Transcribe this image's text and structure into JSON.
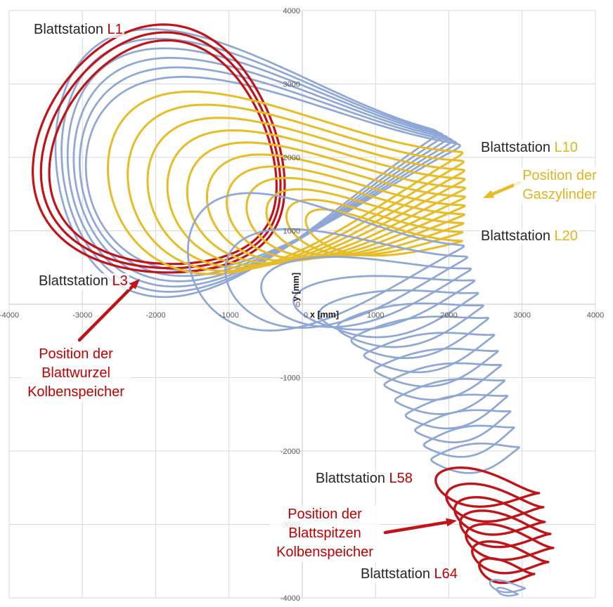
{
  "colors": {
    "curve_red": "#C01418",
    "curve_blue": "#8FA7D6",
    "curve_yellow": "#E7BC26",
    "text_red": "#C00000",
    "text_yellow": "#E2B41E",
    "text_black": "#262626",
    "grid": "#D9D9D9",
    "axis_line": "#C6C6C6",
    "tick": "#595959"
  },
  "chart_data": {
    "type": "line",
    "title": "",
    "xlabel": "x [mm]",
    "ylabel": "y [mm]",
    "xlim": [
      -4000,
      4000
    ],
    "ylim": [
      -4000,
      4000
    ],
    "xticks": [
      -4000,
      -3000,
      -2000,
      -1000,
      0,
      1000,
      2000,
      3000,
      4000
    ],
    "yticks": [
      -4000,
      -3000,
      -2000,
      -1000,
      0,
      1000,
      2000,
      3000,
      4000
    ],
    "grid": true,
    "legend": false,
    "loop_param_format": [
      "cx_mm",
      "cy_mm",
      "rx_mm",
      "ry_mm",
      "rot_deg",
      "pinch_left",
      "pinch_right",
      "bend_mm"
    ],
    "series": [
      {
        "name": "blade-root-stations-L4-L9",
        "color": "curve_blue",
        "stroke_width": 2.7,
        "loops": [
          [
            -753.5,
            2117.5,
            2613,
            1480,
            4.78,
            0,
            0.92,
            120
          ],
          [
            -679,
            2086,
            2606,
            1398,
            4.71,
            0,
            0.92,
            120
          ],
          [
            -606,
            2055,
            2597,
            1316,
            4.64,
            0,
            0.92,
            120
          ],
          [
            -534.5,
            2024,
            2586,
            1234,
            4.57,
            0,
            0.92,
            120
          ],
          [
            -465.5,
            1993.5,
            2574,
            1152,
            4.49,
            0,
            0.92,
            120
          ],
          [
            -397.5,
            1963,
            2559,
            1070,
            4.42,
            0,
            0.92,
            120
          ]
        ]
      },
      {
        "name": "blade-root-stations-L1-L3",
        "color": "curve_red",
        "stroke_width": 3.2,
        "loops": [
          [
            -1850,
            1960,
            1745,
            1655,
            -35,
            0,
            0.4,
            0
          ],
          [
            -1828,
            1944,
            1660,
            1573,
            -35,
            0,
            0.4,
            0
          ],
          [
            -1804,
            1926,
            1575,
            1492,
            -35,
            0,
            0.4,
            0
          ]
        ]
      },
      {
        "name": "gas-cylinder-stations-L10-L20",
        "color": "curve_yellow",
        "stroke_width": 3.0,
        "loops": [
          [
            -232.5,
            1910,
            2422,
            1000,
            3.55,
            0,
            0.93,
            240
          ],
          [
            -90,
            1820,
            2293,
            910,
            3.0,
            0,
            0.93,
            230
          ],
          [
            50,
            1730,
            2162,
            820,
            2.39,
            0,
            0.93,
            220
          ],
          [
            187.5,
            1640,
            2028,
            735,
            1.7,
            0,
            0.93,
            210
          ],
          [
            325,
            1550,
            1895,
            655,
            0.91,
            0,
            0.93,
            200
          ],
          [
            460,
            1460,
            1760,
            575,
            0,
            0,
            0.93,
            190
          ],
          [
            592.5,
            1370,
            1623,
            495,
            -1.06,
            0,
            0.93,
            180
          ],
          [
            725,
            1280,
            1486,
            420,
            -2.31,
            0,
            0.93,
            170
          ],
          [
            855,
            1190,
            1346,
            345,
            -3.83,
            0,
            0.93,
            160
          ],
          [
            985,
            1100,
            1206,
            275,
            -5.69,
            0,
            0.93,
            150
          ],
          [
            1115,
            1010,
            1076,
            210,
            -8.01,
            0,
            0.93,
            140
          ]
        ]
      },
      {
        "name": "mid-stations-L21-L57",
        "color": "curve_blue",
        "stroke_width": 2.7,
        "loops": [
          [
            322.5,
            745,
            1883,
            750,
            1.37,
            0,
            0.93,
            190
          ],
          [
            602,
            535,
            1653,
            570,
            3.64,
            0.2,
            0.93,
            170
          ],
          [
            871,
            345,
            1437,
            430,
            5.39,
            0.4,
            0.93,
            150
          ],
          [
            1115,
            175,
            1243,
            340,
            6.7,
            0.55,
            0.93,
            130
          ],
          [
            1315,
            5,
            1094,
            300,
            7.61,
            0.65,
            0.94,
            115
          ],
          [
            1475,
            -170,
            1006,
            280,
            8.57,
            0.75,
            0.94,
            105
          ],
          [
            1605,
            -345,
            947,
            265,
            9.42,
            0.8,
            0.94,
            100
          ],
          [
            1732,
            -560,
            899,
            255,
            8.96,
            0.85,
            0.95,
            95
          ],
          [
            1829,
            -770,
            851,
            245,
            8.79,
            0.85,
            0.95,
            90
          ],
          [
            1918,
            -965,
            808,
            235,
            9.62,
            0.85,
            0.95,
            85
          ],
          [
            2013,
            -1175,
            759,
            225,
            10.24,
            0.85,
            0.95,
            80
          ],
          [
            2105,
            -1385,
            708,
            215,
            11.0,
            0.85,
            0.95,
            75
          ],
          [
            2190,
            -1590,
            663,
            205,
            11.31,
            0.85,
            0.95,
            70
          ],
          [
            2275,
            -1800,
            627,
            200,
            11.04,
            0.85,
            0.95,
            65
          ],
          [
            2360,
            -2035,
            606,
            195,
            8.06,
            0.85,
            0.95,
            60
          ]
        ]
      },
      {
        "name": "blade-tip-stations-L58-L64",
        "color": "curve_red",
        "stroke_width": 3.4,
        "loops": [
          [
            2526,
            -2478,
            711,
            230,
            -7.72,
            0.55,
            1,
            50
          ],
          [
            2627,
            -2684,
            666,
            225,
            -6.98,
            0.55,
            1,
            50
          ],
          [
            2694,
            -2870,
            621,
            220,
            -8.85,
            0.55,
            1,
            50
          ],
          [
            2771,
            -3043,
            620,
            215,
            -7.97,
            0.55,
            1,
            50
          ],
          [
            2829,
            -3224,
            602,
            210,
            -9.12,
            0.55,
            1,
            50
          ],
          [
            2838,
            -3430,
            524,
            185,
            -8.94,
            0.55,
            1,
            50
          ],
          [
            2790,
            -3608,
            380,
            140,
            -10.15,
            0.55,
            1,
            50
          ]
        ]
      },
      {
        "name": "outermost-tip-stations",
        "color": "curve_blue",
        "stroke_width": 2.4,
        "loops": [
          [
            2800,
            -3830,
            243,
            70,
            -9.46,
            0.5,
            0.9,
            25
          ],
          [
            2800,
            -3915,
            147,
            42,
            -13.7,
            0.5,
            0.9,
            15
          ]
        ]
      }
    ]
  },
  "annotations": {
    "l1": {
      "prefix": "Blattstation ",
      "code": "L1"
    },
    "l10": {
      "prefix": "Blattstation ",
      "code": "L10"
    },
    "gas": {
      "line1": "Position der",
      "line2": "Gaszylinder"
    },
    "l20": {
      "prefix": "Blattstation ",
      "code": "L20"
    },
    "l3": {
      "prefix": "Blattstation ",
      "code": "L3"
    },
    "wurzel": {
      "line1": "Position der",
      "line2": "Blattwurzel",
      "line3": "Kolbenspeicher"
    },
    "l58": {
      "prefix": "Blattstation ",
      "code": "L58"
    },
    "spitzen": {
      "line1": "Position der",
      "line2": "Blattspitzen",
      "line3": "Kolbenspeicher"
    },
    "l64": {
      "prefix": "Blattstation ",
      "code": "L64"
    },
    "arrows": [
      {
        "name": "arrow-blattwurzel-kolbenspeicher",
        "color": "curve_red",
        "from": [
          113,
          484
        ],
        "to": [
          199,
          397
        ]
      },
      {
        "name": "arrow-gaszylinder",
        "color": "curve_yellow",
        "from": [
          739,
          260
        ],
        "to": [
          687,
          282
        ]
      },
      {
        "name": "arrow-blattspitzen-kolbenspeicher",
        "color": "curve_red",
        "from": [
          548,
          758
        ],
        "to": [
          650,
          741
        ]
      }
    ]
  }
}
